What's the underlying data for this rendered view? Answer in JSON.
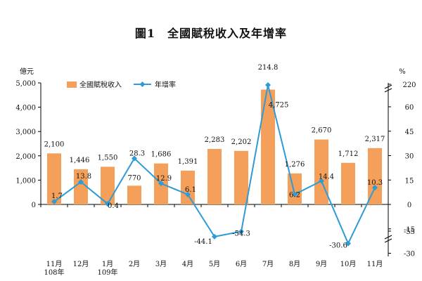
{
  "chart_data": {
    "type": "bar",
    "title": "圖1　全國賦稅收入及年增率",
    "categories": [
      "11月\n108年",
      "12月",
      "1月\n109年",
      "2月",
      "3月",
      "4月",
      "5月",
      "6月",
      "7月",
      "8月",
      "9月",
      "10月",
      "11月"
    ],
    "series": [
      {
        "name": "全國賦稅收入",
        "type": "bar",
        "axis": "left",
        "color": "#F5A05A",
        "values": [
          2100,
          1446,
          1550,
          770,
          1686,
          1391,
          2283,
          2202,
          4725,
          1276,
          2670,
          1712,
          2317
        ],
        "labels": [
          "2,100",
          "1,446",
          "1,550",
          "770",
          "1,686",
          "1,391",
          "2,283",
          "2,202",
          "4,725",
          "1,276",
          "2,670",
          "1,712",
          "2,317"
        ]
      },
      {
        "name": "年增率",
        "type": "line",
        "axis": "right",
        "color": "#2E9AD6",
        "values": [
          1.7,
          13.8,
          0.4,
          28.3,
          12.9,
          6.1,
          -44.1,
          -54.3,
          214.8,
          6.2,
          14.4,
          -30.6,
          10.3
        ],
        "labels": [
          "1.7",
          "13.8",
          "0.4",
          "28.3",
          "12.9",
          "6.1",
          "-44.1",
          "-54.3",
          "214.8",
          "6.2",
          "14.4",
          "-30.6",
          "10.3"
        ]
      }
    ],
    "left_axis": {
      "unit": "億元",
      "ticks": [
        "5,000",
        "4,000",
        "3,000",
        "2,000",
        "1,000",
        "0"
      ],
      "tick_values": [
        5000,
        4000,
        3000,
        2000,
        1000,
        0
      ],
      "ylim": [
        0,
        5000
      ]
    },
    "right_axis": {
      "unit": "%",
      "ticks": [
        "220",
        "60",
        "45",
        "30",
        "15",
        "0",
        "-15",
        "-30",
        "-55"
      ],
      "tick_values": [
        220,
        60,
        45,
        30,
        15,
        0,
        -15,
        -30,
        -55
      ],
      "axis_break": true
    },
    "legend": {
      "placement": "top-left"
    },
    "grid": false
  }
}
